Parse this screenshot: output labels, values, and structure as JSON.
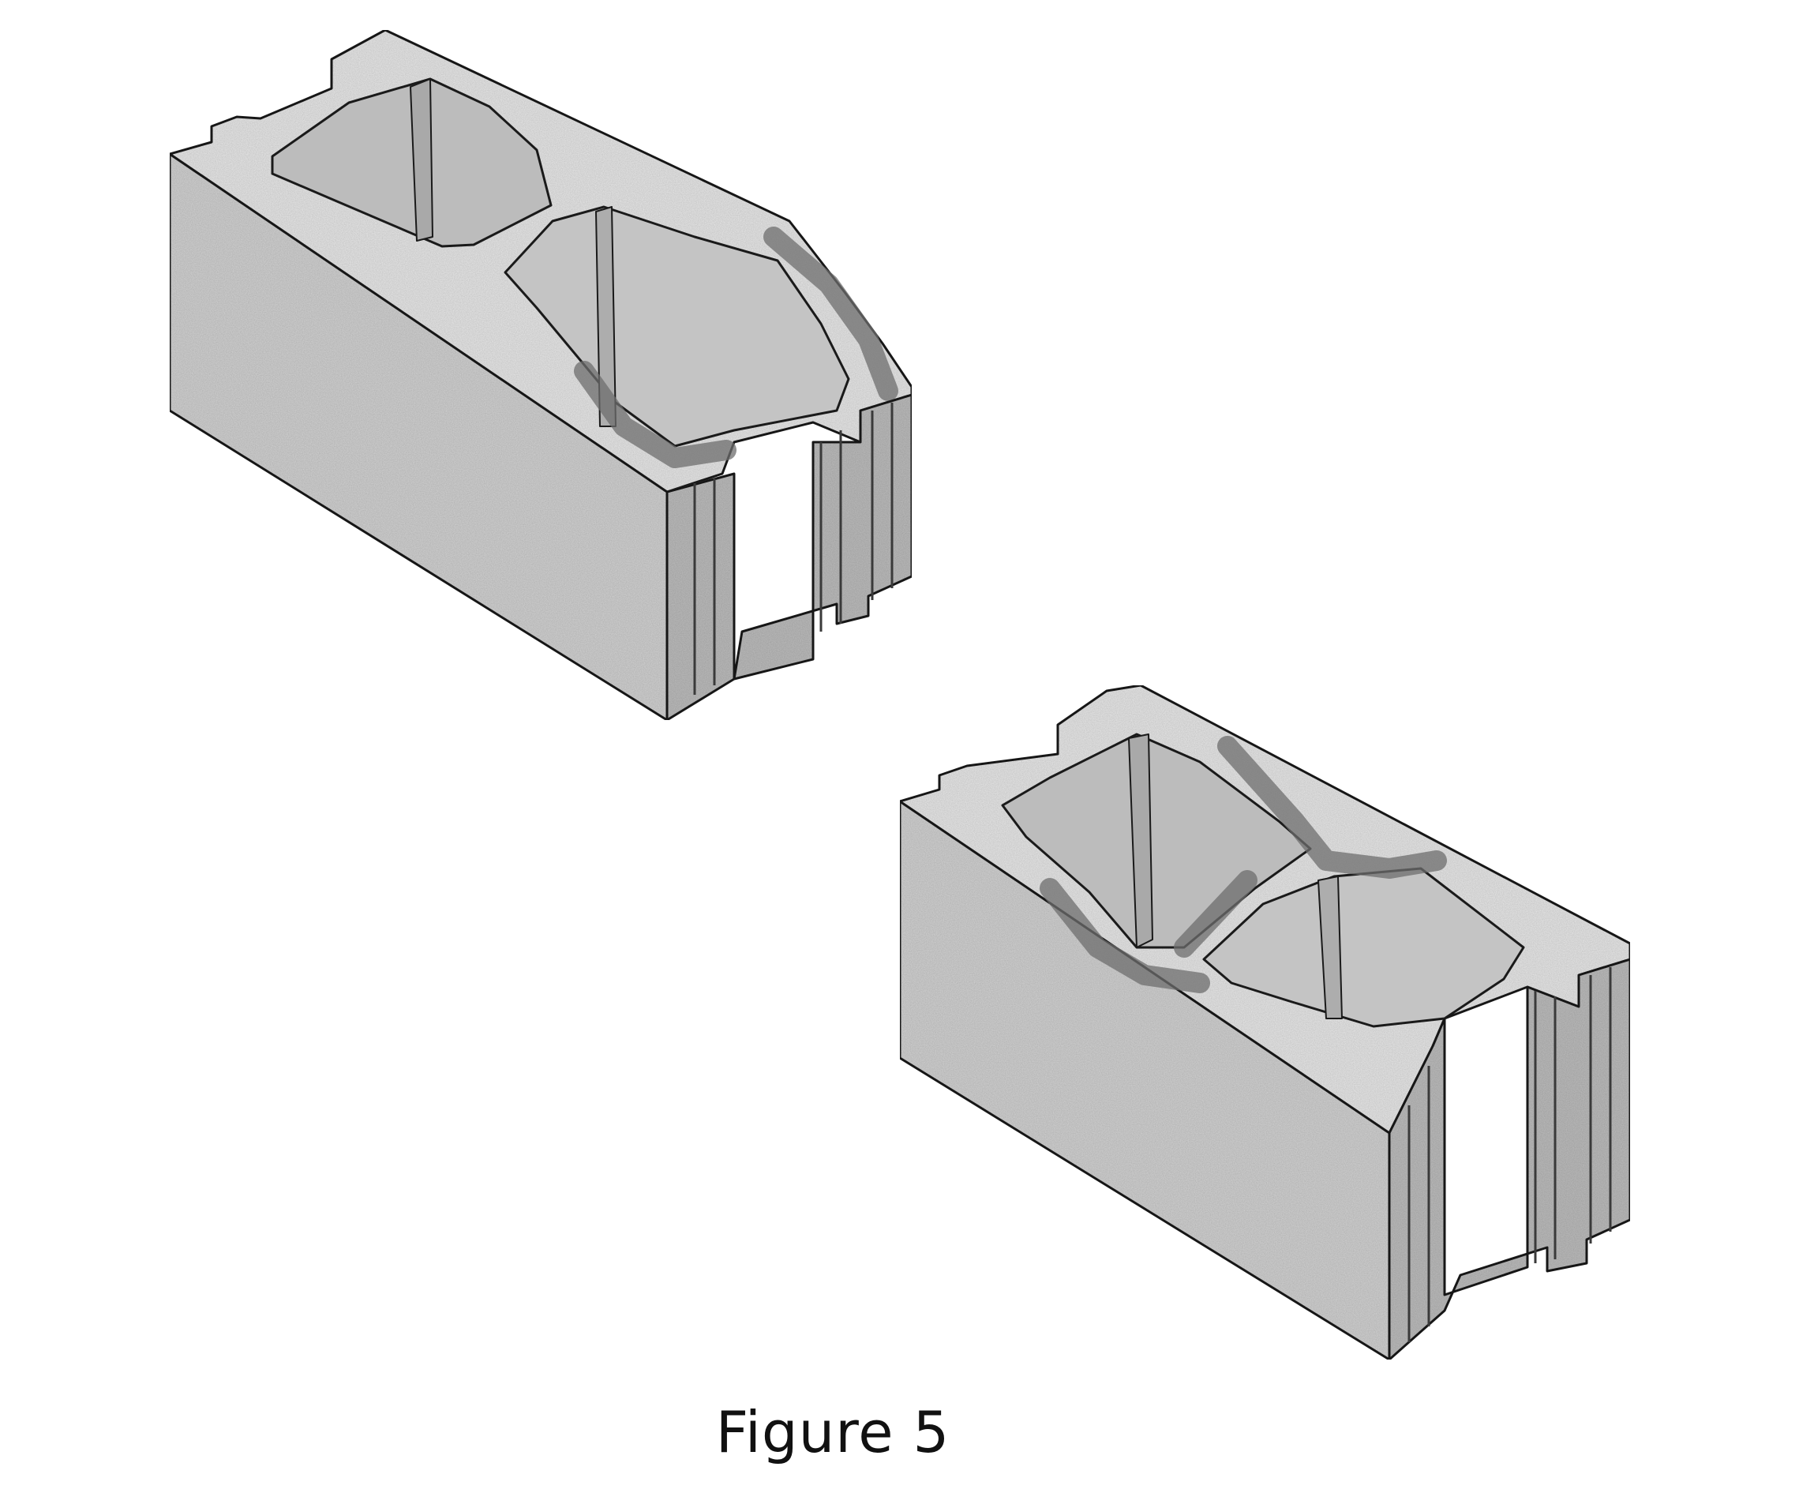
{
  "figure": {
    "caption": "Figure 5",
    "items": [
      {
        "name": "concrete-block-broken-end-web",
        "description_icon": "concrete-block-icon"
      },
      {
        "name": "concrete-block-broken-face-shell",
        "description_icon": "concrete-block-icon"
      }
    ]
  },
  "colors": {
    "concrete_top": "#e8e8e8",
    "concrete_face": "#d2d2d2",
    "concrete_end": "#bdbdbd",
    "cavity_wall": "#b8b8b8",
    "fracture": "#6d6d6d",
    "outline": "#1a1a1a"
  }
}
